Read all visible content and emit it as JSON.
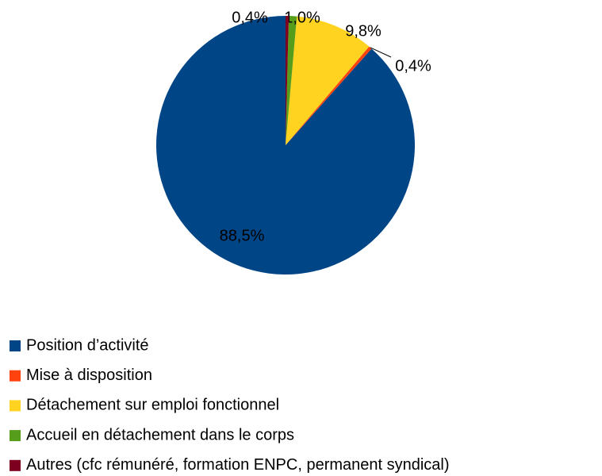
{
  "chart_data": {
    "type": "pie",
    "categories": [
      "Position d’activité",
      "Mise à disposition",
      "Détachement sur emploi fonctionnel",
      "Accueil en détachement dans le corps",
      "Autres (cfc rémunéré, formation ENPC, permanent syndical)"
    ],
    "values": [
      88.5,
      0.4,
      9.8,
      1.0,
      0.4
    ],
    "value_labels": [
      "88,5%",
      "0,4%",
      "9,8%",
      "1,0%",
      "0,4%"
    ],
    "colors": [
      "#004586",
      "#ff420e",
      "#ffd320",
      "#579d1c",
      "#7e0021"
    ],
    "legend": "bottom-left"
  }
}
